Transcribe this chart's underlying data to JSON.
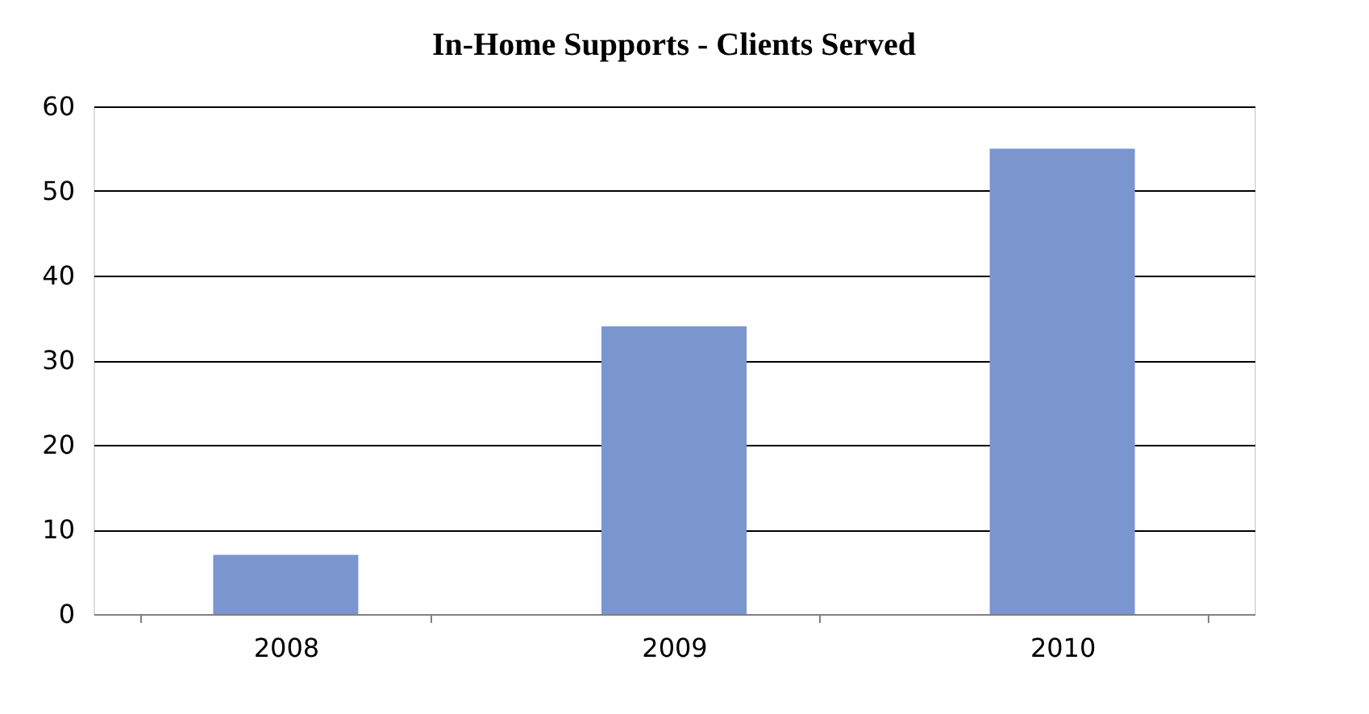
{
  "chart_data": {
    "type": "bar",
    "title": "In-Home Supports - Clients Served",
    "categories": [
      "2008",
      "2009",
      "2010"
    ],
    "values": [
      7,
      34,
      55
    ],
    "color": "#7b95cf",
    "ylim": [
      0,
      60
    ],
    "yticks": [
      0,
      10,
      20,
      30,
      40,
      50,
      60
    ],
    "grid": "y"
  }
}
